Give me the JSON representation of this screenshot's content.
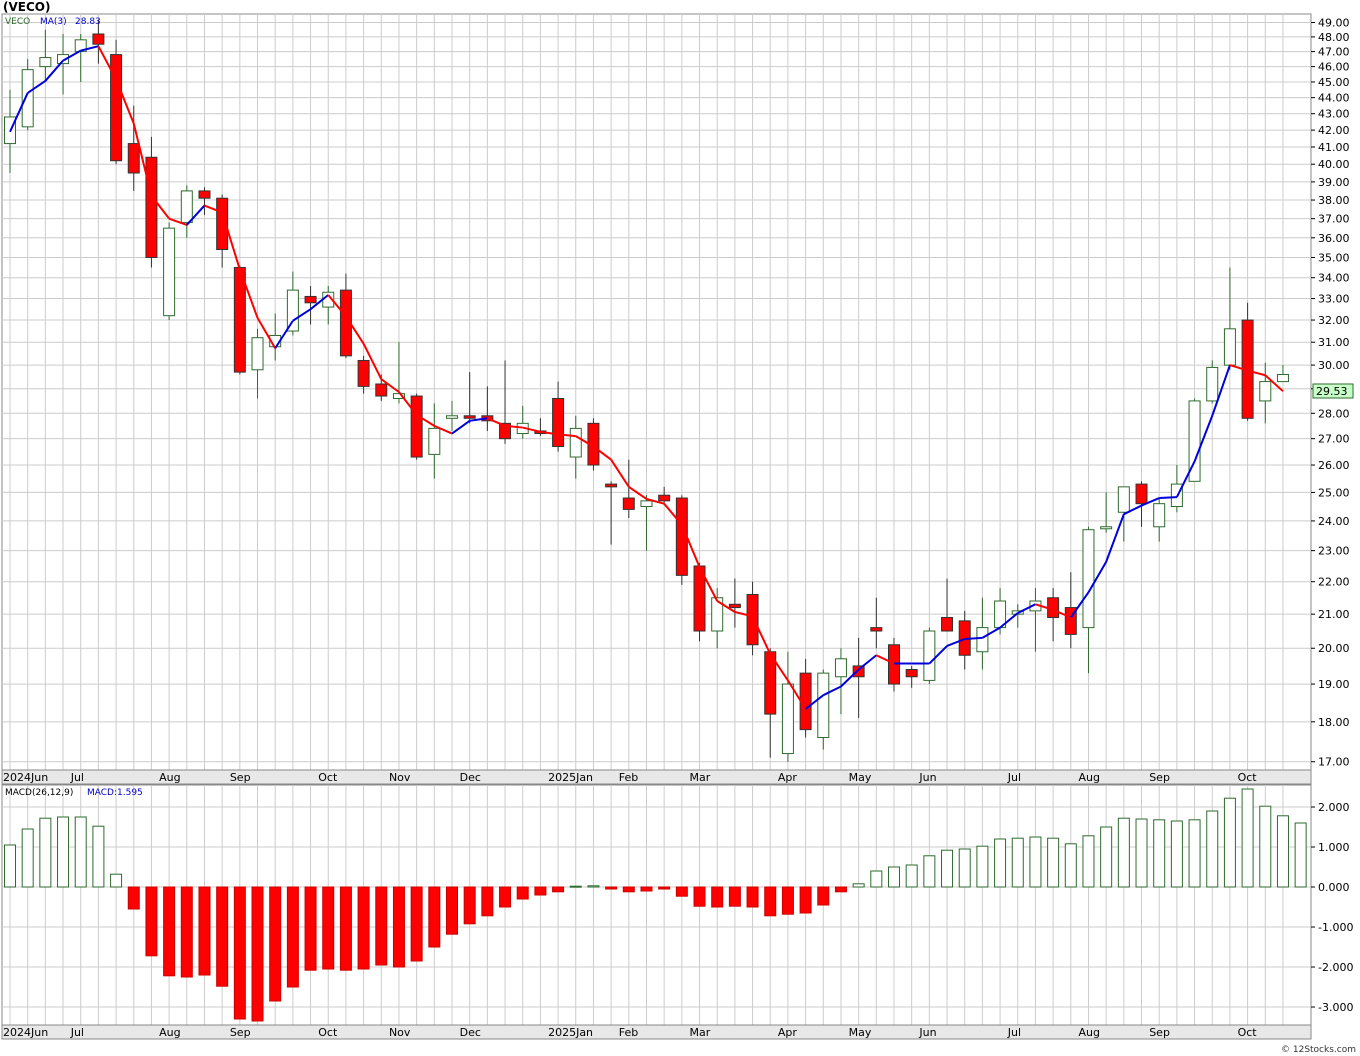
{
  "header": {
    "title": "(VECO)",
    "symbol": "VECO",
    "ma_label": "MA(3)",
    "ma_value": "28.83",
    "last_price": "29.53"
  },
  "macd_panel": {
    "label": "MACD(26,12,9)",
    "value_label": "MACD:1.595"
  },
  "footer": {
    "watermark": "© 12Stocks.com"
  },
  "colors": {
    "up": "#2e6b2e",
    "down": "#ff0000",
    "ma_up": "#0000dd",
    "ma_down": "#ff0000",
    "grid": "#cccccc",
    "axis_band": "#e8e8e8",
    "price_box": "#c8ffc8"
  },
  "chart_data": [
    {
      "type": "candlestick",
      "title": "(VECO)",
      "series_label": "VECO",
      "overlay": {
        "name": "MA(3)",
        "last_value": 28.83
      },
      "scale": "log",
      "ylim": [
        16.8,
        49.6
      ],
      "yticks": [
        17,
        18,
        19,
        20,
        21,
        22,
        23,
        24,
        25,
        26,
        27,
        28,
        29,
        30,
        31,
        32,
        33,
        34,
        35,
        36,
        37,
        38,
        39,
        40,
        41,
        42,
        43,
        44,
        45,
        46,
        47,
        48,
        49
      ],
      "x_labels": [
        {
          "i": 0,
          "text": "2024Jun"
        },
        {
          "i": 4,
          "text": "Jul"
        },
        {
          "i": 9,
          "text": "Aug"
        },
        {
          "i": 13,
          "text": "Sep"
        },
        {
          "i": 18,
          "text": "Oct"
        },
        {
          "i": 22,
          "text": "Nov"
        },
        {
          "i": 26,
          "text": "Dec"
        },
        {
          "i": 31,
          "text": "2025Jan"
        },
        {
          "i": 35,
          "text": "Feb"
        },
        {
          "i": 39,
          "text": "Mar"
        },
        {
          "i": 44,
          "text": "Apr"
        },
        {
          "i": 48,
          "text": "May"
        },
        {
          "i": 52,
          "text": "Jun"
        },
        {
          "i": 57,
          "text": "Jul"
        },
        {
          "i": 61,
          "text": "Aug"
        },
        {
          "i": 65,
          "text": "Sep"
        },
        {
          "i": 70,
          "text": "Oct"
        }
      ],
      "last_price": 29.53,
      "candles": [
        {
          "o": 41.2,
          "h": 44.5,
          "l": 39.5,
          "c": 42.8
        },
        {
          "o": 42.2,
          "h": 46.5,
          "l": 42.0,
          "c": 45.8
        },
        {
          "o": 46.0,
          "h": 48.5,
          "l": 45.0,
          "c": 46.6
        },
        {
          "o": 46.2,
          "h": 48.2,
          "l": 44.2,
          "c": 46.8
        },
        {
          "o": 47.0,
          "h": 48.2,
          "l": 45.0,
          "c": 47.8
        },
        {
          "o": 48.2,
          "h": 49.2,
          "l": 46.2,
          "c": 47.5
        },
        {
          "o": 46.8,
          "h": 47.8,
          "l": 40.0,
          "c": 40.2
        },
        {
          "o": 41.2,
          "h": 43.5,
          "l": 38.5,
          "c": 39.5
        },
        {
          "o": 40.4,
          "h": 41.6,
          "l": 34.5,
          "c": 35.0
        },
        {
          "o": 32.2,
          "h": 36.8,
          "l": 32.0,
          "c": 36.5
        },
        {
          "o": 36.8,
          "h": 38.8,
          "l": 36.0,
          "c": 38.5
        },
        {
          "o": 38.5,
          "h": 38.7,
          "l": 37.2,
          "c": 38.1
        },
        {
          "o": 38.1,
          "h": 38.3,
          "l": 34.5,
          "c": 35.4
        },
        {
          "o": 34.5,
          "h": 34.6,
          "l": 29.6,
          "c": 29.7
        },
        {
          "o": 29.8,
          "h": 31.6,
          "l": 28.6,
          "c": 31.2
        },
        {
          "o": 30.8,
          "h": 32.3,
          "l": 30.2,
          "c": 31.3
        },
        {
          "o": 31.5,
          "h": 34.3,
          "l": 31.3,
          "c": 33.4
        },
        {
          "o": 33.1,
          "h": 33.6,
          "l": 31.8,
          "c": 32.8
        },
        {
          "o": 32.6,
          "h": 33.6,
          "l": 31.8,
          "c": 33.3
        },
        {
          "o": 33.4,
          "h": 34.2,
          "l": 30.3,
          "c": 30.4
        },
        {
          "o": 30.2,
          "h": 30.4,
          "l": 28.8,
          "c": 29.1
        },
        {
          "o": 29.2,
          "h": 29.6,
          "l": 28.5,
          "c": 28.7
        },
        {
          "o": 28.6,
          "h": 31.0,
          "l": 28.4,
          "c": 28.8
        },
        {
          "o": 28.7,
          "h": 28.8,
          "l": 26.2,
          "c": 26.3
        },
        {
          "o": 26.4,
          "h": 28.4,
          "l": 25.5,
          "c": 27.4
        },
        {
          "o": 27.8,
          "h": 28.5,
          "l": 27.3,
          "c": 27.9
        },
        {
          "o": 27.9,
          "h": 29.7,
          "l": 27.6,
          "c": 27.8
        },
        {
          "o": 27.9,
          "h": 29.1,
          "l": 27.3,
          "c": 27.7
        },
        {
          "o": 27.6,
          "h": 30.2,
          "l": 26.8,
          "c": 27.0
        },
        {
          "o": 27.2,
          "h": 28.3,
          "l": 27.0,
          "c": 27.6
        },
        {
          "o": 27.3,
          "h": 27.8,
          "l": 27.1,
          "c": 27.2
        },
        {
          "o": 28.6,
          "h": 29.3,
          "l": 26.5,
          "c": 26.7
        },
        {
          "o": 26.3,
          "h": 27.9,
          "l": 25.5,
          "c": 27.4
        },
        {
          "o": 27.6,
          "h": 27.8,
          "l": 25.8,
          "c": 26.0
        },
        {
          "o": 25.3,
          "h": 25.4,
          "l": 23.2,
          "c": 25.2
        },
        {
          "o": 24.8,
          "h": 26.2,
          "l": 24.1,
          "c": 24.4
        },
        {
          "o": 24.5,
          "h": 24.9,
          "l": 23.0,
          "c": 24.7
        },
        {
          "o": 24.9,
          "h": 25.2,
          "l": 24.6,
          "c": 24.7
        },
        {
          "o": 24.8,
          "h": 24.9,
          "l": 21.9,
          "c": 22.2
        },
        {
          "o": 22.5,
          "h": 22.6,
          "l": 20.2,
          "c": 20.5
        },
        {
          "o": 20.5,
          "h": 21.8,
          "l": 20.0,
          "c": 21.5
        },
        {
          "o": 21.3,
          "h": 22.1,
          "l": 20.6,
          "c": 21.2
        },
        {
          "o": 21.6,
          "h": 22.0,
          "l": 19.8,
          "c": 20.1
        },
        {
          "o": 19.9,
          "h": 20.0,
          "l": 17.1,
          "c": 18.2
        },
        {
          "o": 17.2,
          "h": 19.9,
          "l": 17.0,
          "c": 19.0
        },
        {
          "o": 19.3,
          "h": 19.7,
          "l": 17.6,
          "c": 17.8
        },
        {
          "o": 17.6,
          "h": 19.4,
          "l": 17.3,
          "c": 19.3
        },
        {
          "o": 19.2,
          "h": 20.0,
          "l": 18.2,
          "c": 19.7
        },
        {
          "o": 19.5,
          "h": 20.3,
          "l": 18.1,
          "c": 19.2
        },
        {
          "o": 20.6,
          "h": 21.5,
          "l": 20.0,
          "c": 20.5
        },
        {
          "o": 20.1,
          "h": 20.3,
          "l": 18.8,
          "c": 19.0
        },
        {
          "o": 19.4,
          "h": 19.5,
          "l": 18.9,
          "c": 19.2
        },
        {
          "o": 19.1,
          "h": 20.6,
          "l": 19.0,
          "c": 20.5
        },
        {
          "o": 20.9,
          "h": 22.1,
          "l": 20.5,
          "c": 20.5
        },
        {
          "o": 20.8,
          "h": 21.1,
          "l": 19.4,
          "c": 19.8
        },
        {
          "o": 19.9,
          "h": 21.5,
          "l": 19.4,
          "c": 20.6
        },
        {
          "o": 20.6,
          "h": 21.8,
          "l": 20.4,
          "c": 21.4
        },
        {
          "o": 21.0,
          "h": 21.3,
          "l": 20.6,
          "c": 21.1
        },
        {
          "o": 21.1,
          "h": 21.8,
          "l": 19.9,
          "c": 21.4
        },
        {
          "o": 21.5,
          "h": 21.8,
          "l": 20.2,
          "c": 20.9
        },
        {
          "o": 21.2,
          "h": 22.3,
          "l": 20.0,
          "c": 20.4
        },
        {
          "o": 20.6,
          "h": 23.8,
          "l": 19.3,
          "c": 23.7
        },
        {
          "o": 23.8,
          "h": 25.0,
          "l": 23.6,
          "c": 23.8
        },
        {
          "o": 24.3,
          "h": 25.2,
          "l": 23.3,
          "c": 25.2
        },
        {
          "o": 25.3,
          "h": 25.4,
          "l": 23.8,
          "c": 24.6
        },
        {
          "o": 23.8,
          "h": 24.8,
          "l": 23.3,
          "c": 24.6
        },
        {
          "o": 24.5,
          "h": 26.0,
          "l": 24.3,
          "c": 25.3
        },
        {
          "o": 25.4,
          "h": 28.6,
          "l": 25.4,
          "c": 28.5
        },
        {
          "o": 28.5,
          "h": 30.2,
          "l": 28.4,
          "c": 29.9
        },
        {
          "o": 30.0,
          "h": 34.5,
          "l": 29.8,
          "c": 31.6
        },
        {
          "o": 32.0,
          "h": 32.8,
          "l": 27.7,
          "c": 27.8
        },
        {
          "o": 28.5,
          "h": 30.1,
          "l": 27.6,
          "c": 29.3
        },
        {
          "o": 29.3,
          "h": 30.0,
          "l": 29.3,
          "c": 29.6
        }
      ]
    },
    {
      "type": "bar",
      "title": "MACD(26,12,9)",
      "last_value": 1.595,
      "ylim": [
        -3.45,
        2.55
      ],
      "yticks": [
        -3.0,
        -2.0,
        -1.0,
        0.0,
        1.0,
        2.0
      ],
      "values": [
        1.05,
        1.45,
        1.72,
        1.75,
        1.75,
        1.52,
        0.32,
        -0.55,
        -1.72,
        -2.22,
        -2.25,
        -2.2,
        -2.48,
        -3.3,
        -3.35,
        -2.85,
        -2.5,
        -2.08,
        -2.05,
        -2.08,
        -2.05,
        -1.95,
        -2.0,
        -1.85,
        -1.5,
        -1.18,
        -0.92,
        -0.72,
        -0.5,
        -0.3,
        -0.2,
        -0.12,
        0.02,
        0.03,
        -0.05,
        -0.12,
        -0.1,
        -0.05,
        -0.23,
        -0.48,
        -0.5,
        -0.48,
        -0.5,
        -0.72,
        -0.68,
        -0.65,
        -0.45,
        -0.12,
        0.08,
        0.4,
        0.5,
        0.55,
        0.78,
        0.92,
        0.95,
        1.02,
        1.2,
        1.22,
        1.25,
        1.22,
        1.08,
        1.28,
        1.5,
        1.72,
        1.7,
        1.68,
        1.65,
        1.68,
        1.9,
        2.22,
        2.45,
        2.02,
        1.78,
        1.6
      ]
    }
  ]
}
